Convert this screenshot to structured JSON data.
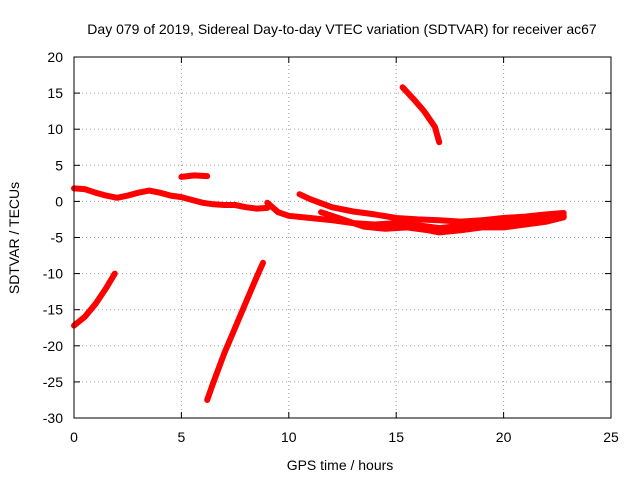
{
  "chart_data": {
    "type": "line",
    "title": "Day 079 of 2019, Sidereal Day-to-day VTEC variation (SDTVAR) for receiver ac67",
    "xlabel": "GPS time / hours",
    "ylabel": "SDTVAR / TECUs",
    "xlim": [
      0,
      25
    ],
    "ylim": [
      -30,
      20
    ],
    "xticks": [
      0,
      5,
      10,
      15,
      20,
      25
    ],
    "yticks": [
      -30,
      -25,
      -20,
      -15,
      -10,
      -5,
      0,
      5,
      10,
      15,
      20
    ],
    "grid": true,
    "color": "#ff0000",
    "series": [
      {
        "points": [
          [
            0.0,
            1.8
          ],
          [
            0.5,
            1.7
          ],
          [
            1.0,
            1.2
          ],
          [
            1.5,
            0.8
          ],
          [
            2.0,
            0.5
          ],
          [
            2.5,
            0.8
          ],
          [
            3.0,
            1.2
          ],
          [
            3.5,
            1.5
          ],
          [
            4.0,
            1.2
          ],
          [
            4.5,
            0.8
          ],
          [
            5.0,
            0.6
          ],
          [
            5.5,
            0.2
          ],
          [
            6.0,
            -0.2
          ],
          [
            6.5,
            -0.4
          ],
          [
            7.0,
            -0.5
          ],
          [
            7.5,
            -0.5
          ],
          [
            8.0,
            -0.8
          ],
          [
            8.5,
            -1.0
          ],
          [
            9.0,
            -0.9
          ]
        ]
      },
      {
        "points": [
          [
            0.0,
            -17.2
          ],
          [
            0.5,
            -16.0
          ],
          [
            1.0,
            -14.2
          ],
          [
            1.5,
            -12.0
          ],
          [
            1.9,
            -10.0
          ]
        ]
      },
      {
        "points": [
          [
            5.0,
            3.4
          ],
          [
            5.6,
            3.6
          ],
          [
            6.2,
            3.5
          ]
        ]
      },
      {
        "points": [
          [
            6.2,
            -27.5
          ],
          [
            6.5,
            -25.0
          ],
          [
            7.0,
            -21.0
          ],
          [
            7.5,
            -17.5
          ],
          [
            8.0,
            -14.0
          ],
          [
            8.5,
            -10.5
          ],
          [
            8.8,
            -8.5
          ]
        ]
      },
      {
        "points": [
          [
            9.0,
            -0.2
          ],
          [
            9.5,
            -1.5
          ],
          [
            10.0,
            -2.0
          ],
          [
            11.0,
            -2.3
          ],
          [
            12.0,
            -2.6
          ],
          [
            13.0,
            -3.0
          ],
          [
            14.0,
            -3.2
          ],
          [
            15.0,
            -3.0
          ],
          [
            16.0,
            -3.3
          ],
          [
            17.0,
            -3.7
          ],
          [
            18.0,
            -3.4
          ],
          [
            19.0,
            -3.1
          ],
          [
            20.0,
            -2.8
          ],
          [
            21.0,
            -2.6
          ],
          [
            22.0,
            -2.4
          ],
          [
            22.8,
            -2.0
          ]
        ]
      },
      {
        "points": [
          [
            10.5,
            1.0
          ],
          [
            11.0,
            0.3
          ],
          [
            12.0,
            -0.8
          ],
          [
            13.0,
            -1.4
          ],
          [
            14.0,
            -1.8
          ],
          [
            15.0,
            -2.3
          ],
          [
            16.0,
            -2.5
          ],
          [
            17.0,
            -2.6
          ],
          [
            18.0,
            -2.8
          ],
          [
            19.0,
            -2.6
          ],
          [
            20.0,
            -2.3
          ],
          [
            21.0,
            -2.1
          ],
          [
            22.0,
            -1.8
          ],
          [
            22.8,
            -1.6
          ]
        ]
      },
      {
        "points": [
          [
            11.5,
            -1.5
          ],
          [
            12.5,
            -2.5
          ],
          [
            13.5,
            -3.5
          ],
          [
            14.5,
            -3.8
          ],
          [
            15.5,
            -3.6
          ],
          [
            16.5,
            -4.0
          ],
          [
            17.0,
            -4.3
          ],
          [
            18.0,
            -4.0
          ],
          [
            19.0,
            -3.6
          ],
          [
            20.0,
            -3.6
          ],
          [
            21.0,
            -3.2
          ],
          [
            22.0,
            -2.8
          ],
          [
            22.8,
            -2.2
          ]
        ]
      },
      {
        "points": [
          [
            15.3,
            15.8
          ],
          [
            15.8,
            14.2
          ],
          [
            16.3,
            12.5
          ],
          [
            16.8,
            10.3
          ],
          [
            17.0,
            8.2
          ]
        ]
      }
    ]
  }
}
